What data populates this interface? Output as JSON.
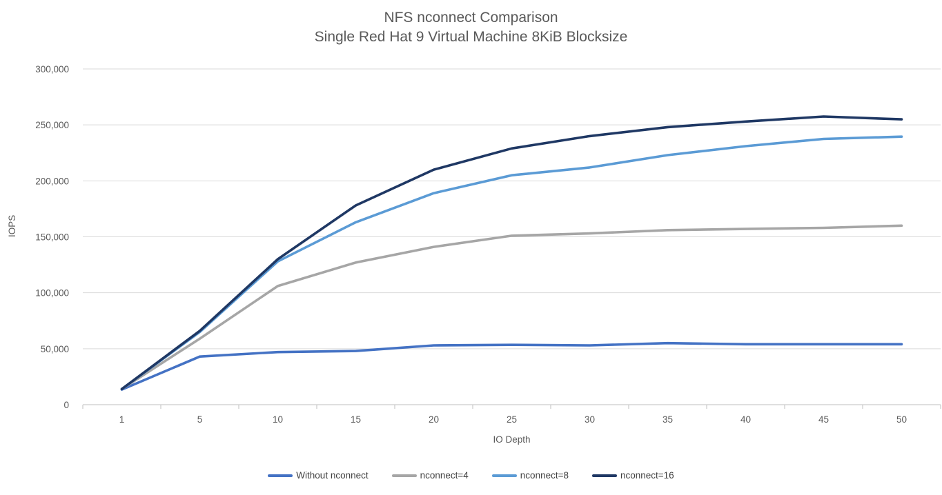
{
  "chart_data": {
    "type": "line",
    "title": "NFS nconnect Comparison",
    "subtitle": "Single Red Hat 9 Virtual Machine 8KiB Blocksize",
    "xlabel": "IO Depth",
    "ylabel": "IOPS",
    "categories": [
      "1",
      "5",
      "10",
      "15",
      "20",
      "25",
      "30",
      "35",
      "40",
      "45",
      "50"
    ],
    "y_axis": {
      "min": 0,
      "max": 300000,
      "step": 50000,
      "tick_labels": [
        "0",
        "50,000",
        "100,000",
        "150,000",
        "200,000",
        "250,000",
        "300,000"
      ]
    },
    "grid": true,
    "legend_position": "bottom",
    "series": [
      {
        "name": "Without nconnect",
        "color": "#4472C4",
        "values": [
          13500,
          43000,
          47000,
          48000,
          53000,
          53500,
          53000,
          55000,
          54000,
          54000,
          54000
        ]
      },
      {
        "name": "nconnect=4",
        "color": "#A6A6A6",
        "values": [
          14000,
          59000,
          106000,
          127000,
          141000,
          151000,
          153000,
          156000,
          157000,
          158000,
          160000
        ]
      },
      {
        "name": "nconnect=8",
        "color": "#5B9BD5",
        "values": [
          14000,
          65000,
          128000,
          163000,
          189000,
          205000,
          212000,
          223000,
          231000,
          237500,
          239500
        ]
      },
      {
        "name": "nconnect=16",
        "color": "#1F3864",
        "values": [
          14000,
          66000,
          130000,
          178000,
          210000,
          229000,
          240000,
          248000,
          253000,
          257500,
          255000
        ]
      }
    ]
  },
  "colors": {
    "text_gray": "#595959",
    "grid": "#D9D9D9",
    "axis": "#BFBFBF"
  }
}
